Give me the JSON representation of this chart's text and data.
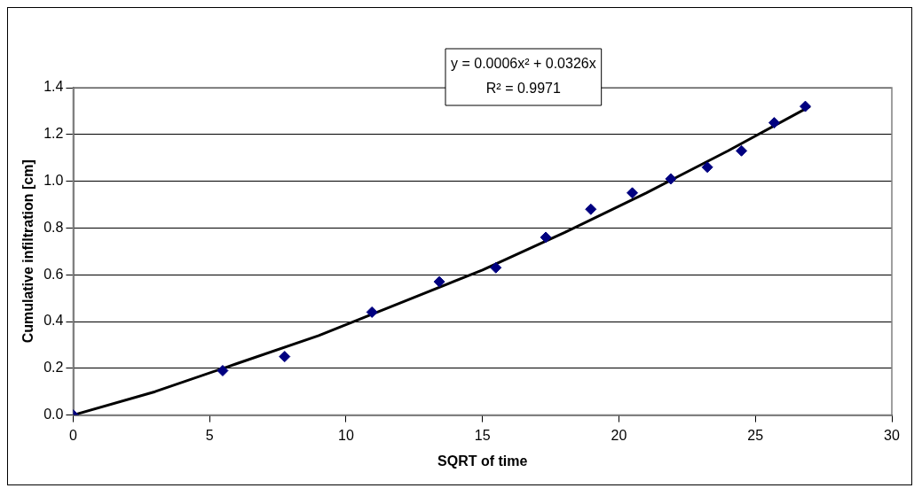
{
  "chart_data": {
    "type": "scatter",
    "xlabel": "SQRT of time",
    "ylabel": "Cumulative infiltration [cm]",
    "xlim": [
      0,
      30
    ],
    "xticks": [
      0,
      5,
      10,
      15,
      20,
      25,
      30
    ],
    "ylim": [
      0,
      1.4
    ],
    "yticks": [
      {
        "value": 0,
        "label": "0.0"
      },
      {
        "value": 0.2,
        "label": "0.2"
      },
      {
        "value": 0.4,
        "label": "0.4"
      },
      {
        "value": 0.6,
        "label": "0.6"
      },
      {
        "value": 0.8,
        "label": "0.8"
      },
      {
        "value": 1.0,
        "label": "1.0"
      },
      {
        "value": 1.2,
        "label": "1.2"
      },
      {
        "value": 1.4,
        "label": "1.4"
      }
    ],
    "grid": "y",
    "legend": false,
    "marker": "diamond",
    "annotations": [
      "y = 0.0006x² + 0.0326x",
      "R² = 0.9971"
    ],
    "series": [
      {
        "color": "#000080",
        "x": [
          0,
          5.48,
          7.75,
          10.95,
          13.42,
          15.49,
          17.32,
          18.97,
          20.49,
          21.9,
          23.24,
          24.49,
          25.69,
          26.83
        ],
        "values": [
          0,
          0.19,
          0.25,
          0.44,
          0.57,
          0.63,
          0.76,
          0.88,
          0.95,
          1.01,
          1.06,
          1.13,
          1.25,
          1.32
        ]
      },
      {
        "type": "line",
        "color": "#000000",
        "marker": "none",
        "line_style": "solid",
        "x": [
          0,
          3,
          6,
          9,
          12,
          15,
          18,
          21,
          24,
          27
        ],
        "values": [
          0,
          0.1,
          0.22,
          0.34,
          0.48,
          0.62,
          0.78,
          0.95,
          1.13,
          1.32
        ]
      }
    ]
  }
}
